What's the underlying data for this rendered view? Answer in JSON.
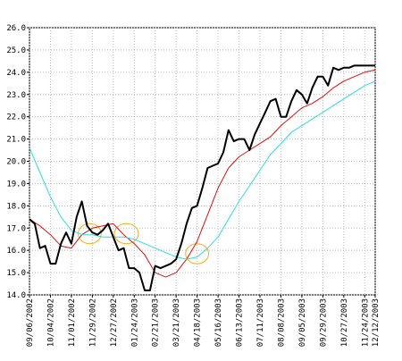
{
  "chart_data": {
    "type": "line",
    "title": "",
    "xlabel": "",
    "ylabel": "",
    "ylim": [
      14.0,
      26.0
    ],
    "yticks": [
      14.0,
      15.0,
      16.0,
      17.0,
      18.0,
      19.0,
      20.0,
      21.0,
      22.0,
      23.0,
      24.0,
      25.0,
      26.0
    ],
    "ytick_labels": [
      "14.0",
      "15.0",
      "16.0",
      "17.0",
      "18.0",
      "19.0",
      "20.0",
      "21.0",
      "22.0",
      "23.0",
      "24.0",
      "25.0",
      "26.0"
    ],
    "xlim": [
      0,
      66
    ],
    "xticks": [
      0,
      4,
      8,
      12,
      16,
      20,
      24,
      28,
      32,
      36,
      40,
      44,
      48,
      52,
      56,
      60,
      64,
      66
    ],
    "xtick_labels": [
      "09/06/2002",
      "10/04/2002",
      "11/01/2002",
      "11/29/2002",
      "12/27/2002",
      "01/24/2003",
      "02/21/2003",
      "03/21/2003",
      "04/18/2003",
      "05/16/2003",
      "06/13/2003",
      "07/11/2003",
      "08/08/2003",
      "09/05/2003",
      "09/29/2003",
      "10/27/2003",
      "11/24/2003",
      "12/12/2003"
    ],
    "grid": "dotted",
    "series": [
      {
        "name": "",
        "color": "#000000",
        "width": 2,
        "x": [
          0,
          1,
          2,
          3,
          4,
          5,
          6,
          7,
          8,
          9,
          10,
          11,
          12,
          13,
          14,
          15,
          16,
          17,
          18,
          19,
          20,
          21,
          22,
          23,
          24,
          25,
          26,
          27,
          28,
          29,
          30,
          31,
          32,
          33,
          34,
          35,
          36,
          37,
          38,
          39,
          40,
          41,
          42,
          43,
          44,
          45,
          46,
          47,
          48,
          49,
          50,
          51,
          52,
          53,
          54,
          55,
          56,
          57,
          58,
          59,
          60,
          61,
          62,
          63,
          64,
          65,
          66
        ],
        "values": [
          17.4,
          17.2,
          16.1,
          16.2,
          15.4,
          15.4,
          16.3,
          16.8,
          16.3,
          17.5,
          18.2,
          17.1,
          16.8,
          16.7,
          16.9,
          17.2,
          16.6,
          16.0,
          16.1,
          15.2,
          15.2,
          15.0,
          14.2,
          14.2,
          15.3,
          15.2,
          15.3,
          15.4,
          15.6,
          16.3,
          17.2,
          17.9,
          18.0,
          18.8,
          19.7,
          19.8,
          19.9,
          20.4,
          21.4,
          20.9,
          21.0,
          21.0,
          20.5,
          21.2,
          21.7,
          22.2,
          22.7,
          22.8,
          22.0,
          22.0,
          22.7,
          23.2,
          23.0,
          22.6,
          23.3,
          23.8,
          23.8,
          23.4,
          24.2,
          24.1,
          24.2,
          24.2,
          24.3,
          24.3,
          24.3,
          24.3,
          24.3
        ]
      },
      {
        "name": "",
        "color": "#dd1111",
        "width": 1,
        "x": [
          0,
          2,
          4,
          6,
          8,
          10,
          12,
          14,
          16,
          18,
          20,
          22,
          24,
          26,
          28,
          30,
          32,
          34,
          36,
          38,
          40,
          42,
          44,
          46,
          48,
          50,
          52,
          54,
          56,
          58,
          60,
          62,
          64,
          66
        ],
        "values": [
          17.4,
          17.1,
          16.7,
          16.2,
          16.1,
          16.7,
          17.0,
          17.1,
          17.2,
          16.7,
          16.3,
          15.8,
          15.0,
          14.8,
          15.0,
          15.6,
          16.4,
          17.6,
          18.8,
          19.7,
          20.2,
          20.5,
          20.8,
          21.1,
          21.6,
          22.0,
          22.4,
          22.6,
          22.9,
          23.3,
          23.6,
          23.8,
          24.0,
          24.1
        ]
      },
      {
        "name": "",
        "color": "#33dddd",
        "width": 1,
        "x": [
          0,
          2,
          4,
          6,
          8,
          10,
          12,
          14,
          16,
          18,
          20,
          22,
          24,
          26,
          28,
          30,
          32,
          34,
          36,
          38,
          40,
          42,
          44,
          46,
          48,
          50,
          52,
          54,
          56,
          58,
          60,
          62,
          64,
          66
        ],
        "values": [
          20.6,
          19.5,
          18.4,
          17.5,
          16.9,
          16.7,
          16.7,
          16.6,
          16.6,
          16.6,
          16.5,
          16.3,
          16.1,
          15.9,
          15.7,
          15.6,
          15.7,
          16.1,
          16.6,
          17.4,
          18.2,
          18.9,
          19.6,
          20.3,
          20.8,
          21.3,
          21.6,
          21.9,
          22.2,
          22.5,
          22.8,
          23.1,
          23.4,
          23.6
        ]
      }
    ],
    "annotations": [
      {
        "type": "ellipse",
        "color": "#f0b020",
        "x": 11.5,
        "y": 16.75,
        "rx": 2.2,
        "ry": 0.45
      },
      {
        "type": "ellipse",
        "color": "#f0b020",
        "x": 18.5,
        "y": 16.75,
        "rx": 2.3,
        "ry": 0.45
      },
      {
        "type": "ellipse",
        "color": "#f0b020",
        "x": 32.0,
        "y": 15.85,
        "rx": 2.2,
        "ry": 0.45
      }
    ]
  }
}
